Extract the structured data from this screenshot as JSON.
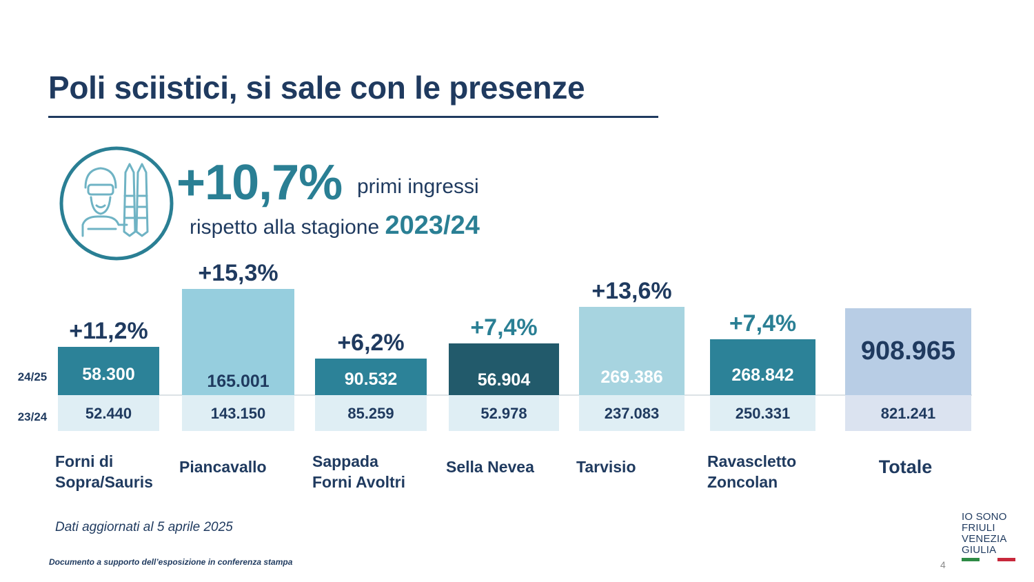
{
  "title": "Poli sciistici, si sale con le presenze",
  "headline": {
    "pct": "+10,7%",
    "suffix": "primi ingressi",
    "sub_text": "rispetto alla stagione",
    "sub_season": "2023/24"
  },
  "chart_data": {
    "type": "bar",
    "row_labels": [
      "24/25",
      "23/24"
    ],
    "categories": [
      [
        "Forni di",
        "Sopra/Sauris"
      ],
      [
        "Piancavallo"
      ],
      [
        "Sappada",
        "Forni Avoltri"
      ],
      [
        "Sella Nevea"
      ],
      [
        "Tarvisio"
      ],
      [
        "Ravascletto",
        "Zoncolan"
      ],
      [
        "Totale"
      ]
    ],
    "series": [
      {
        "name": "24/25",
        "values": [
          58300,
          165001,
          90532,
          56904,
          269386,
          268842,
          908965
        ],
        "labels": [
          "58.300",
          "165.001",
          "90.532",
          "56.904",
          "269.386",
          "268.842",
          "908.965"
        ]
      },
      {
        "name": "23/24",
        "values": [
          52440,
          143150,
          85259,
          52978,
          237083,
          250331,
          821241
        ],
        "labels": [
          "52.440",
          "143.150",
          "85.259",
          "52.978",
          "237.083",
          "250.331",
          "821.241"
        ]
      }
    ],
    "growth_labels": [
      "+11,2%",
      "+15,3%",
      "+6,2%",
      "+7,4%",
      "+13,6%",
      "+7,4%",
      ""
    ],
    "colors": {
      "bars_2425": [
        "#2c8298",
        "#96cede",
        "#2c8298",
        "#225a6b",
        "#a7d4e0",
        "#2c8298",
        "#b8cde5"
      ],
      "labels_2425": [
        "#ffffff",
        "#1f3a5f",
        "#ffffff",
        "#ffffff",
        "#ffffff",
        "#ffffff",
        "#1f3a5f"
      ],
      "bars_2324": [
        "#dfeef4",
        "#dfeef4",
        "#dfeef4",
        "#dfeef4",
        "#dfeef4",
        "#dfeef4",
        "#dbe3f0"
      ],
      "growth": [
        "#1f3a5f",
        "#1f3a5f",
        "#1f3a5f",
        "#2a7f94",
        "#1f3a5f",
        "#2a7f94",
        "#1f3a5f"
      ]
    }
  },
  "note": "Dati aggiornati al 5 aprile 2025",
  "footer": "Documento a supporto dell’esposizione in conferenza stampa",
  "page_number": "4",
  "logo": {
    "lines": [
      "IO SONO",
      "FRIULI",
      "VENEZIA",
      "GIULIA"
    ],
    "flag_colors": [
      "#2e8b45",
      "#ffffff",
      "#c8283b"
    ]
  }
}
